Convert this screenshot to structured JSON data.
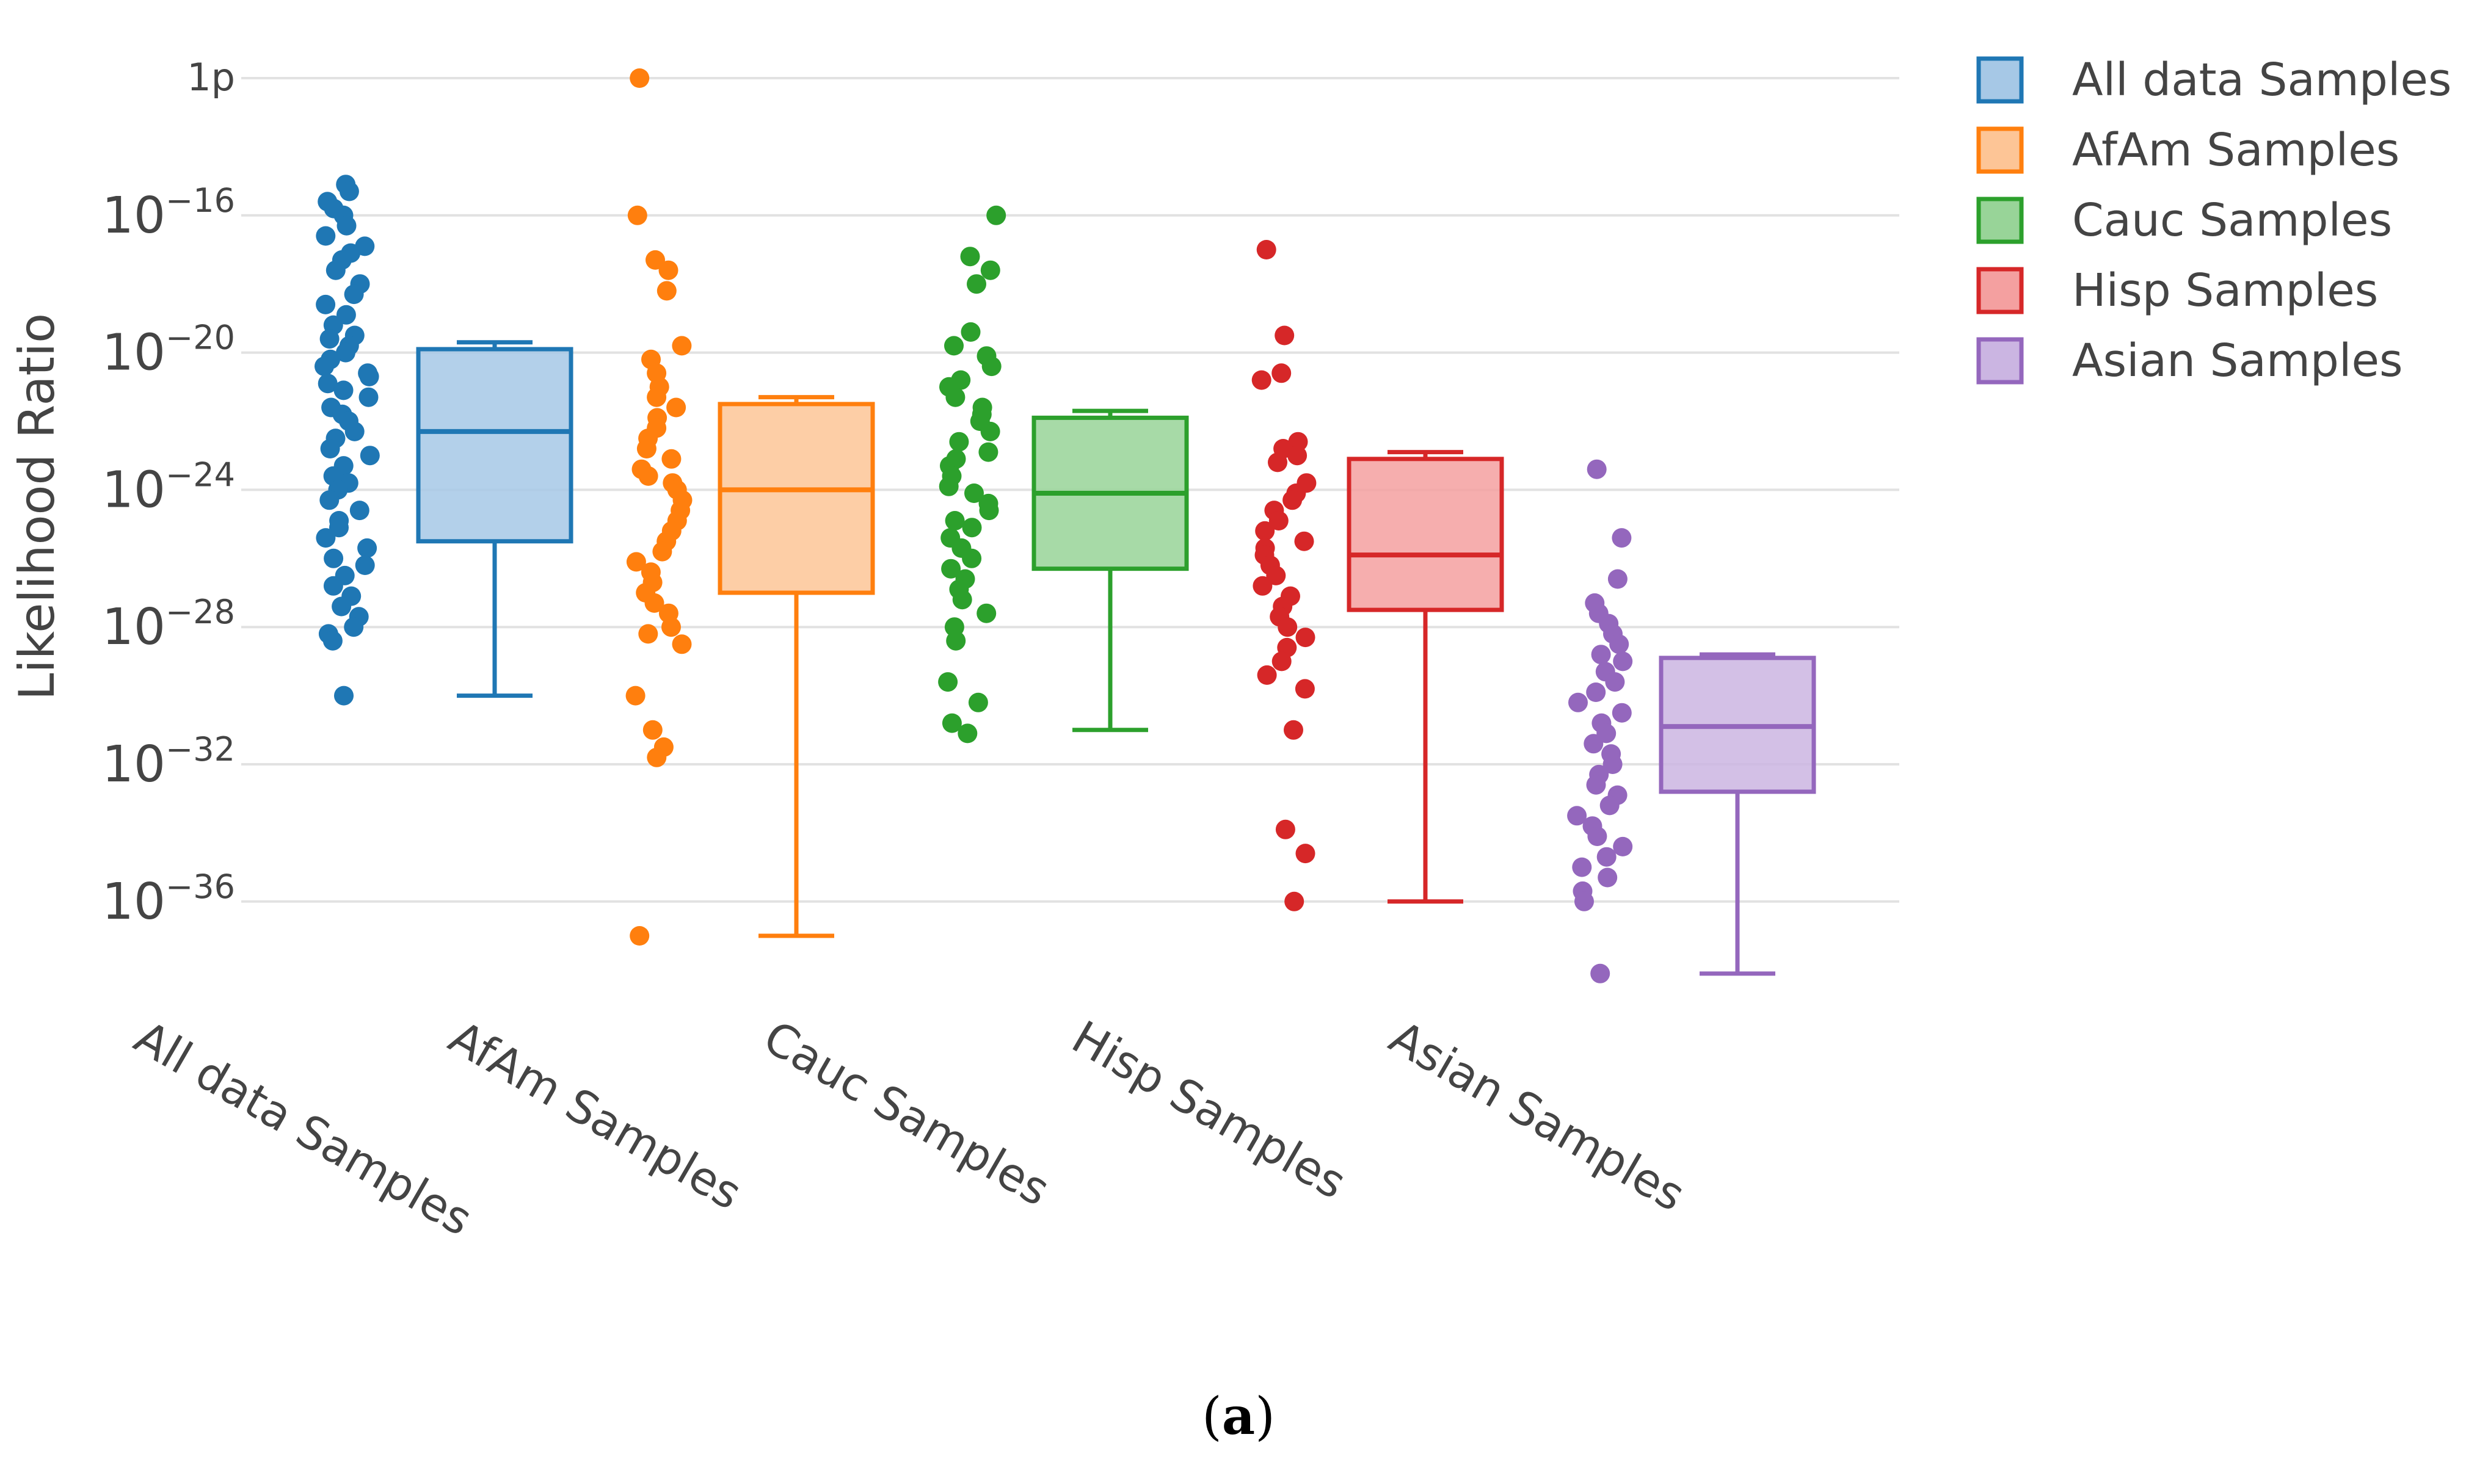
{
  "chart_data": {
    "type": "box",
    "title": "",
    "xlabel": "",
    "ylabel": "Likelihood Ratio",
    "yscale": "log10",
    "ylim_log10": [
      -40,
      -11
    ],
    "y_ticks": [
      {
        "log10": -12,
        "label": "1p"
      },
      {
        "log10": -16,
        "label": "10",
        "exp": "−16"
      },
      {
        "log10": -20,
        "label": "10",
        "exp": "−20"
      },
      {
        "log10": -24,
        "label": "10",
        "exp": "−24"
      },
      {
        "log10": -28,
        "label": "10",
        "exp": "−28"
      },
      {
        "log10": -32,
        "label": "10",
        "exp": "−32"
      },
      {
        "log10": -36,
        "label": "10",
        "exp": "−36"
      }
    ],
    "grid": true,
    "legend_position": "top-right",
    "series": [
      {
        "name": "All data Samples",
        "color": "#1f77b4",
        "fill": "#a6c8e6",
        "whisker_low": -30.0,
        "q1": -25.5,
        "median": -22.3,
        "q3": -19.9,
        "whisker_high": -19.7,
        "points": [
          -15.1,
          -15.3,
          -15.6,
          -15.8,
          -16.0,
          -16.3,
          -16.6,
          -16.9,
          -17.1,
          -17.3,
          -17.6,
          -18.0,
          -18.3,
          -18.6,
          -18.9,
          -19.2,
          -19.5,
          -19.6,
          -19.8,
          -20.0,
          -20.2,
          -20.4,
          -20.6,
          -20.7,
          -20.9,
          -21.1,
          -21.3,
          -21.6,
          -21.8,
          -22.0,
          -22.3,
          -22.5,
          -22.8,
          -23.0,
          -23.3,
          -23.6,
          -23.8,
          -24.0,
          -24.3,
          -24.6,
          -24.9,
          -25.1,
          -25.4,
          -25.7,
          -26.0,
          -26.2,
          -26.5,
          -26.8,
          -27.1,
          -27.4,
          -27.7,
          -28.0,
          -28.2,
          -28.4,
          -30.0
        ],
        "xlabel": "All data Samples"
      },
      {
        "name": "AfAm Samples",
        "color": "#ff7f0e",
        "fill": "#fdc596",
        "whisker_low": -37.0,
        "q1": -27.0,
        "median": -24.0,
        "q3": -21.5,
        "whisker_high": -21.3,
        "points": [
          -12.0,
          -16.0,
          -17.3,
          -17.6,
          -18.2,
          -19.8,
          -20.2,
          -20.6,
          -21.0,
          -21.3,
          -21.6,
          -21.9,
          -22.2,
          -22.5,
          -22.8,
          -23.1,
          -23.4,
          -23.6,
          -23.8,
          -24.0,
          -24.3,
          -24.6,
          -24.9,
          -25.2,
          -25.5,
          -25.8,
          -26.1,
          -26.4,
          -26.7,
          -27.0,
          -27.3,
          -27.6,
          -28.0,
          -28.2,
          -28.5,
          -30.0,
          -31.0,
          -31.5,
          -31.8,
          -37.0
        ],
        "xlabel": "AfAm Samples"
      },
      {
        "name": "Cauc Samples",
        "color": "#2ca02c",
        "fill": "#98d498",
        "whisker_low": -31.0,
        "q1": -26.3,
        "median": -24.1,
        "q3": -21.9,
        "whisker_high": -21.7,
        "points": [
          -16.0,
          -17.2,
          -17.6,
          -18.0,
          -19.4,
          -19.8,
          -20.1,
          -20.4,
          -20.8,
          -21.0,
          -21.3,
          -21.6,
          -21.8,
          -22.0,
          -22.3,
          -22.6,
          -22.9,
          -23.1,
          -23.3,
          -23.6,
          -23.9,
          -24.1,
          -24.4,
          -24.6,
          -24.9,
          -25.1,
          -25.4,
          -25.7,
          -26.0,
          -26.3,
          -26.6,
          -26.9,
          -27.2,
          -27.6,
          -28.0,
          -28.4,
          -29.6,
          -30.2,
          -30.8,
          -31.1
        ],
        "xlabel": "Cauc Samples"
      },
      {
        "name": "Hisp Samples",
        "color": "#d62728",
        "fill": "#f4a0a0",
        "whisker_low": -36.0,
        "q1": -27.5,
        "median": -25.9,
        "q3": -23.1,
        "whisker_high": -22.9,
        "points": [
          -17.0,
          -19.5,
          -20.6,
          -20.8,
          -22.6,
          -22.8,
          -23.0,
          -23.2,
          -23.8,
          -24.1,
          -24.3,
          -24.6,
          -24.9,
          -25.2,
          -25.5,
          -25.7,
          -25.9,
          -26.2,
          -26.5,
          -26.8,
          -27.1,
          -27.4,
          -27.7,
          -28.0,
          -28.3,
          -28.6,
          -29.0,
          -29.4,
          -29.8,
          -31.0,
          -33.9,
          -34.6,
          -36.0
        ],
        "xlabel": "Hisp Samples"
      },
      {
        "name": "Asian Samples",
        "color": "#9467bd",
        "fill": "#cbb5e2",
        "whisker_low": -38.1,
        "q1": -32.8,
        "median": -30.9,
        "q3": -28.9,
        "whisker_high": -28.8,
        "points": [
          -23.4,
          -25.4,
          -26.6,
          -27.3,
          -27.6,
          -27.9,
          -28.2,
          -28.5,
          -28.8,
          -29.0,
          -29.3,
          -29.6,
          -29.9,
          -30.2,
          -30.5,
          -30.8,
          -31.1,
          -31.4,
          -31.7,
          -32.0,
          -32.3,
          -32.6,
          -32.9,
          -33.2,
          -33.5,
          -33.8,
          -34.1,
          -34.4,
          -34.7,
          -35.0,
          -35.3,
          -35.7,
          -36.0,
          -38.1
        ],
        "xlabel": "Asian Samples"
      }
    ]
  },
  "caption": {
    "open": "(",
    "letter": "a",
    "close": ")"
  }
}
